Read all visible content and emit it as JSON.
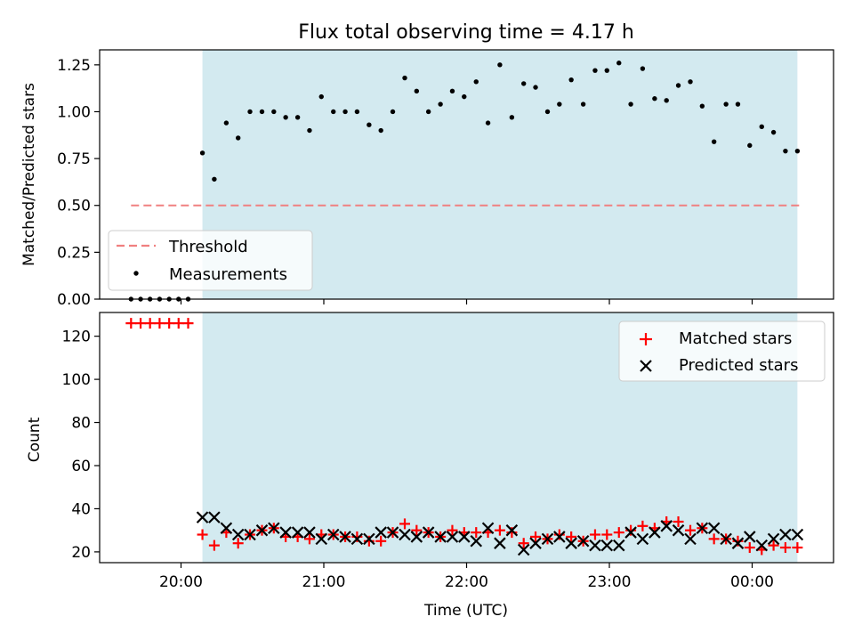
{
  "chart_data": [
    {
      "type": "scatter",
      "title": "Flux total observing time = 4.17 h",
      "xlabel": "",
      "ylabel": "Matched/Predicted stars",
      "ylim": [
        0,
        1.33
      ],
      "yticks": [
        "0.00",
        "0.25",
        "0.50",
        "0.75",
        "1.00",
        "1.25"
      ],
      "legend_position": "lower-left",
      "threshold": {
        "name": "Threshold",
        "value": 0.5,
        "x_start": -0.35,
        "x_end": 4.35,
        "color": "#f08080",
        "style": "dashed"
      },
      "series": [
        {
          "name": "Measurements",
          "color": "#000000",
          "x": [
            -0.35,
            -0.283,
            -0.217,
            -0.15,
            -0.083,
            -0.017,
            0.05,
            0.15,
            0.233,
            0.317,
            0.4,
            0.483,
            0.567,
            0.65,
            0.733,
            0.817,
            0.9,
            0.983,
            1.067,
            1.15,
            1.233,
            1.317,
            1.4,
            1.483,
            1.567,
            1.65,
            1.733,
            1.817,
            1.9,
            1.983,
            2.067,
            2.15,
            2.233,
            2.317,
            2.4,
            2.483,
            2.567,
            2.65,
            2.733,
            2.817,
            2.9,
            2.983,
            3.067,
            3.15,
            3.233,
            3.317,
            3.4,
            3.483,
            3.567,
            3.65,
            3.733,
            3.817,
            3.9,
            3.983,
            4.067,
            4.15,
            4.233,
            4.317
          ],
          "values": [
            0,
            0,
            0,
            0,
            0,
            0,
            0,
            0.78,
            0.64,
            0.94,
            0.86,
            1.0,
            1.0,
            1.0,
            0.97,
            0.97,
            0.9,
            1.08,
            1.0,
            1.0,
            1.0,
            0.93,
            0.9,
            1.0,
            1.18,
            1.11,
            1.0,
            1.04,
            1.11,
            1.08,
            1.16,
            0.94,
            1.25,
            0.97,
            1.15,
            1.13,
            1.0,
            1.04,
            1.17,
            1.04,
            1.22,
            1.22,
            1.26,
            1.04,
            1.23,
            1.07,
            1.06,
            1.14,
            1.16,
            1.03,
            0.84,
            1.04,
            1.04,
            0.82,
            0.92,
            0.89,
            0.79,
            0.79
          ]
        }
      ]
    },
    {
      "type": "scatter",
      "title": "",
      "xlabel": "Time (UTC)",
      "ylabel": "Count",
      "xlim": [
        -0.57,
        4.57
      ],
      "ylim": [
        15,
        131
      ],
      "xticks": [
        {
          "value": 0,
          "label": "20:00"
        },
        {
          "value": 1,
          "label": "21:00"
        },
        {
          "value": 2,
          "label": "22:00"
        },
        {
          "value": 3,
          "label": "23:00"
        },
        {
          "value": 4,
          "label": "00:00"
        }
      ],
      "yticks": [
        "20",
        "40",
        "60",
        "80",
        "100",
        "120"
      ],
      "legend_position": "upper-right",
      "series": [
        {
          "name": "Matched stars",
          "marker": "plus",
          "color": "#ff0000",
          "x": [
            -0.35,
            -0.283,
            -0.217,
            -0.15,
            -0.083,
            -0.017,
            0.05,
            0.15,
            0.233,
            0.317,
            0.4,
            0.483,
            0.567,
            0.65,
            0.733,
            0.817,
            0.9,
            0.983,
            1.067,
            1.15,
            1.233,
            1.317,
            1.4,
            1.483,
            1.567,
            1.65,
            1.733,
            1.817,
            1.9,
            1.983,
            2.067,
            2.15,
            2.233,
            2.317,
            2.4,
            2.483,
            2.567,
            2.65,
            2.733,
            2.817,
            2.9,
            2.983,
            3.067,
            3.15,
            3.233,
            3.317,
            3.4,
            3.483,
            3.567,
            3.65,
            3.733,
            3.817,
            3.9,
            3.983,
            4.067,
            4.15,
            4.233,
            4.317
          ],
          "values": [
            126,
            126,
            126,
            126,
            126,
            126,
            126,
            28,
            23,
            29,
            24,
            28,
            30,
            31,
            27,
            27,
            26,
            28,
            28,
            27,
            27,
            25,
            25,
            29,
            33,
            30,
            29,
            27,
            30,
            29,
            29,
            29,
            30,
            29,
            24,
            27,
            26,
            28,
            27,
            25,
            28,
            28,
            29,
            30,
            32,
            31,
            34,
            34,
            30,
            31,
            26,
            26,
            25,
            22,
            21,
            23,
            22,
            22
          ]
        },
        {
          "name": "Predicted stars",
          "marker": "x",
          "color": "#000000",
          "x": [
            0.15,
            0.233,
            0.317,
            0.4,
            0.483,
            0.567,
            0.65,
            0.733,
            0.817,
            0.9,
            0.983,
            1.067,
            1.15,
            1.233,
            1.317,
            1.4,
            1.483,
            1.567,
            1.65,
            1.733,
            1.817,
            1.9,
            1.983,
            2.067,
            2.15,
            2.233,
            2.317,
            2.4,
            2.483,
            2.567,
            2.65,
            2.733,
            2.817,
            2.9,
            2.983,
            3.067,
            3.15,
            3.233,
            3.317,
            3.4,
            3.483,
            3.567,
            3.65,
            3.733,
            3.817,
            3.9,
            3.983,
            4.067,
            4.15,
            4.233,
            4.317
          ],
          "values": [
            36,
            36,
            31,
            28,
            28,
            30,
            31,
            29,
            29,
            29,
            26,
            28,
            27,
            26,
            26,
            29,
            29,
            28,
            27,
            29,
            27,
            27,
            27,
            25,
            31,
            24,
            30,
            21,
            24,
            26,
            27,
            24,
            25,
            23,
            23,
            23,
            29,
            26,
            29,
            32,
            30,
            26,
            31,
            31,
            26,
            24,
            27,
            23,
            26,
            28,
            28
          ]
        }
      ]
    }
  ],
  "observing_window": {
    "start": 0.15,
    "end": 4.317,
    "color": "#d3eaf0"
  }
}
